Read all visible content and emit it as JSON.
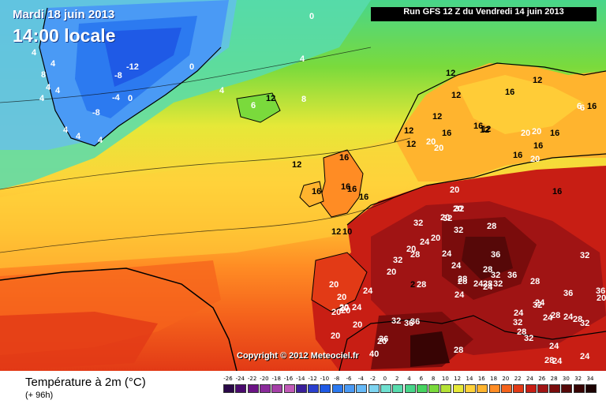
{
  "map": {
    "date": "Mardi 18 juin 2013",
    "time": "14:00 locale",
    "run": "Run GFS 12 Z du Vendredi 14 juin 2013",
    "copyright": "Copyright © 2012 Meteociel.fr"
  },
  "footer": {
    "title": "Température à 2m (°C)",
    "subtitle": "(+ 96h)"
  },
  "scale": {
    "ticks": [
      "-26",
      "-24",
      "-22",
      "-20",
      "-18",
      "-16",
      "-14",
      "-12",
      "-10",
      "-8",
      "-6",
      "-4",
      "-2",
      "0",
      "2",
      "4",
      "6",
      "8",
      "10",
      "12",
      "14",
      "16",
      "18",
      "20",
      "22",
      "24",
      "26",
      "28",
      "30",
      "32",
      "34"
    ],
    "colors": [
      "#2a0848",
      "#4a0a6e",
      "#6b1385",
      "#8a2a9a",
      "#a640a8",
      "#c25ab8",
      "#3a1f9a",
      "#2a3fcf",
      "#1f5ae6",
      "#2c7af0",
      "#4a9af5",
      "#66baf8",
      "#7dd4f0",
      "#6fe0d0",
      "#58dcae",
      "#48d68a",
      "#46d460",
      "#7ada3c",
      "#b4e236",
      "#e6e838",
      "#ffd23a",
      "#ffb42e",
      "#ff8c24",
      "#f5631c",
      "#e23a16",
      "#c81e14",
      "#a01414",
      "#7a0c0c",
      "#560808",
      "#380404",
      "#1c0202"
    ]
  },
  "labels": [
    "0",
    "4",
    "4",
    "-12",
    "-8",
    "0",
    "-4",
    "0",
    "4",
    "-8",
    "8",
    "4",
    "4",
    "4",
    "4",
    "4",
    "4",
    "4",
    "8",
    "12",
    "6",
    "12",
    "12",
    "16",
    "16",
    "16",
    "12",
    "16",
    "16",
    "10",
    "20",
    "12",
    "20",
    "16",
    "16",
    "12",
    "20",
    "12",
    "12",
    "16",
    "20",
    "16",
    "16",
    "20",
    "20",
    "6",
    "16",
    "12",
    "16",
    "20",
    "6",
    "12",
    "12",
    "16",
    "20",
    "32",
    "32",
    "32",
    "28",
    "32",
    "20",
    "24",
    "36",
    "32",
    "28",
    "24",
    "24",
    "28",
    "36",
    "28",
    "32",
    "20",
    "20",
    "24",
    "2",
    "28",
    "28",
    "24",
    "28",
    "32",
    "28",
    "20",
    "24",
    "24",
    "32",
    "20",
    "20",
    "20",
    "20",
    "20",
    "20",
    "24",
    "20",
    "32",
    "36",
    "36",
    "20",
    "36",
    "40",
    "28",
    "32",
    "24",
    "24",
    "28",
    "24",
    "32",
    "28",
    "32",
    "24",
    "24",
    "36",
    "36",
    "32",
    "20",
    "28",
    "24",
    "28",
    "24"
  ]
}
